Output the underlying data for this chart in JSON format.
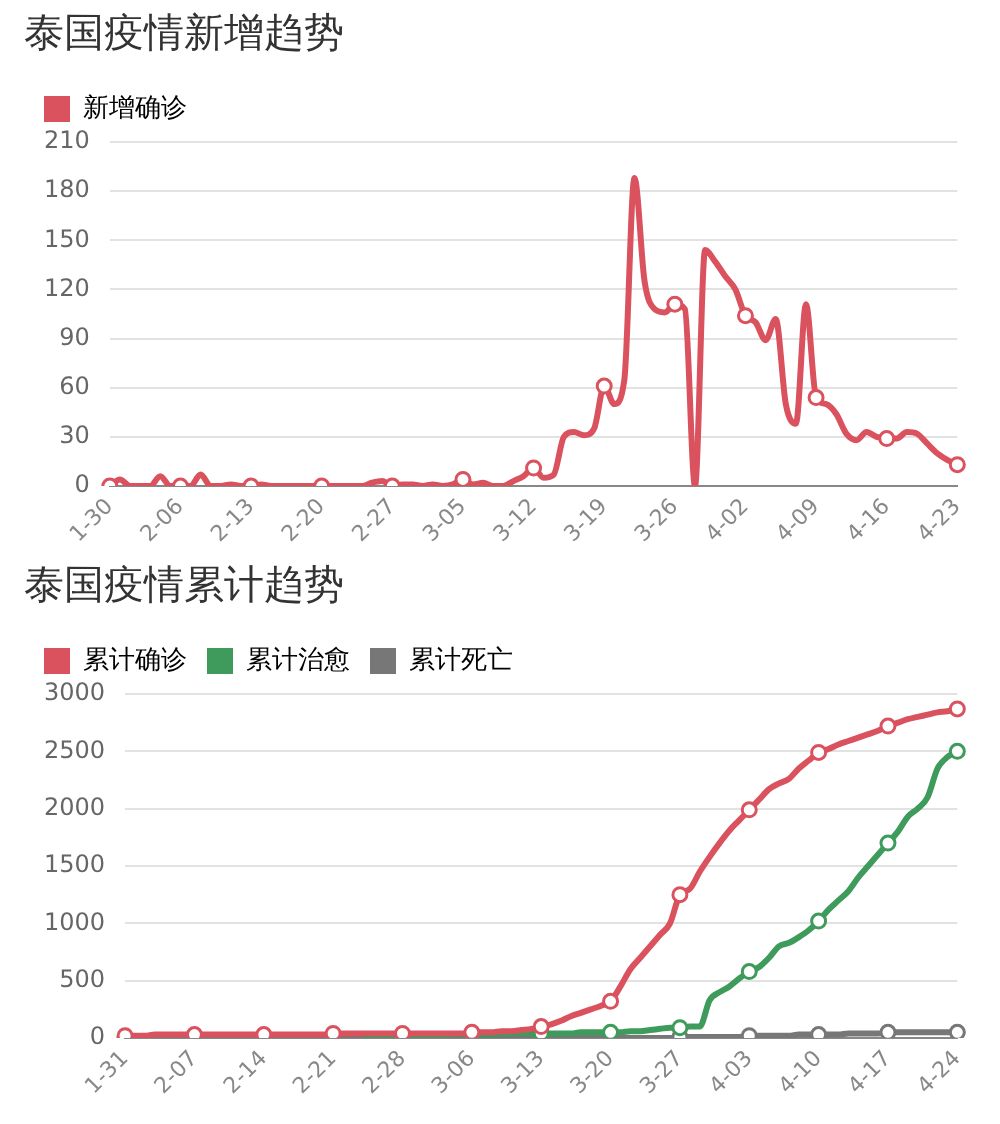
{
  "chart_data": [
    {
      "type": "line",
      "title": "泰国疫情新增趋势",
      "categories": [
        "1-30",
        null,
        null,
        null,
        null,
        null,
        null,
        "2-06",
        null,
        null,
        null,
        null,
        null,
        null,
        "2-13",
        null,
        null,
        null,
        null,
        null,
        null,
        "2-20",
        null,
        null,
        null,
        null,
        null,
        null,
        "2-27",
        null,
        null,
        null,
        null,
        null,
        null,
        "3-05",
        null,
        null,
        null,
        null,
        null,
        null,
        "3-12",
        null,
        null,
        null,
        null,
        null,
        null,
        "3-19",
        null,
        null,
        null,
        null,
        null,
        null,
        "3-26",
        null,
        null,
        null,
        null,
        null,
        null,
        "4-02",
        null,
        null,
        null,
        null,
        null,
        null,
        "4-09",
        null,
        null,
        null,
        null,
        null,
        null,
        "4-16",
        null,
        null,
        null,
        null,
        null,
        null,
        "4-23"
      ],
      "series": [
        {
          "name": "新增确诊",
          "color": "#d9525e",
          "values": [
            0,
            4,
            0,
            0,
            0,
            6,
            0,
            0,
            0,
            7,
            0,
            0,
            1,
            0,
            0,
            1,
            0,
            0,
            0,
            0,
            0,
            0,
            0,
            0,
            0,
            0,
            2,
            3,
            0,
            1,
            1,
            0,
            1,
            0,
            1,
            4,
            1,
            2,
            0,
            0,
            3,
            6,
            11,
            5,
            7,
            30,
            33,
            31,
            35,
            61,
            50,
            65,
            188,
            125,
            108,
            106,
            111,
            108,
            0,
            144,
            137,
            128,
            120,
            104,
            100,
            89,
            102,
            50,
            38,
            111,
            54,
            50,
            44,
            32,
            28,
            33,
            30,
            29,
            29,
            33,
            32,
            26,
            20,
            16,
            13
          ]
        }
      ],
      "ylim": [
        0,
        210
      ],
      "yticks": [
        0,
        30,
        60,
        90,
        120,
        150,
        180,
        210
      ],
      "grid": "y",
      "legend": "top left"
    },
    {
      "type": "line",
      "title": "泰国疫情累计趋势",
      "categories": [
        "1-31",
        null,
        null,
        null,
        null,
        null,
        null,
        "2-07",
        null,
        null,
        null,
        null,
        null,
        null,
        "2-14",
        null,
        null,
        null,
        null,
        null,
        null,
        "2-21",
        null,
        null,
        null,
        null,
        null,
        null,
        "2-28",
        null,
        null,
        null,
        null,
        null,
        null,
        "3-06",
        null,
        null,
        null,
        null,
        null,
        null,
        "3-13",
        null,
        null,
        null,
        null,
        null,
        null,
        "3-20",
        null,
        null,
        null,
        null,
        null,
        null,
        "3-27",
        null,
        null,
        null,
        null,
        null,
        null,
        "4-03",
        null,
        null,
        null,
        null,
        null,
        null,
        "4-10",
        null,
        null,
        null,
        null,
        null,
        null,
        "4-17",
        null,
        null,
        null,
        null,
        null,
        null,
        "4-24"
      ],
      "series": [
        {
          "name": "累计确诊",
          "color": "#d9525e",
          "values": [
            20,
            20,
            20,
            30,
            30,
            30,
            30,
            30,
            30,
            30,
            30,
            30,
            30,
            30,
            30,
            30,
            30,
            30,
            30,
            30,
            30,
            40,
            40,
            40,
            40,
            40,
            40,
            40,
            40,
            40,
            40,
            40,
            40,
            40,
            40,
            50,
            50,
            50,
            60,
            60,
            70,
            80,
            100,
            120,
            150,
            190,
            220,
            250,
            280,
            320,
            450,
            600,
            700,
            800,
            900,
            1000,
            1250,
            1300,
            1450,
            1580,
            1700,
            1810,
            1900,
            1990,
            2080,
            2170,
            2220,
            2260,
            2350,
            2420,
            2490,
            2520,
            2560,
            2590,
            2620,
            2650,
            2680,
            2720,
            2750,
            2780,
            2800,
            2820,
            2840,
            2850,
            2870
          ]
        },
        {
          "name": "累计治愈",
          "color": "#3f9b5c",
          "values": [
            null,
            null,
            null,
            null,
            null,
            null,
            null,
            null,
            null,
            null,
            null,
            null,
            null,
            null,
            null,
            null,
            null,
            null,
            null,
            null,
            null,
            null,
            null,
            null,
            10,
            10,
            10,
            10,
            20,
            20,
            20,
            20,
            20,
            30,
            30,
            30,
            30,
            30,
            40,
            40,
            40,
            40,
            40,
            40,
            40,
            40,
            50,
            50,
            50,
            50,
            50,
            60,
            60,
            70,
            80,
            90,
            90,
            100,
            100,
            330,
            400,
            450,
            520,
            580,
            620,
            700,
            800,
            830,
            880,
            940,
            1020,
            1120,
            1200,
            1280,
            1400,
            1500,
            1600,
            1700,
            1800,
            1930,
            2000,
            2100,
            2350,
            2450,
            2500
          ]
        },
        {
          "name": "累计死亡",
          "color": "#777777",
          "values": [
            0,
            0,
            0,
            0,
            0,
            0,
            0,
            0,
            0,
            0,
            0,
            0,
            0,
            0,
            0,
            0,
            0,
            0,
            0,
            0,
            0,
            0,
            0,
            0,
            0,
            0,
            0,
            0,
            0,
            0,
            0,
            0,
            0,
            0,
            0,
            0,
            0,
            0,
            0,
            0,
            0,
            0,
            0,
            0,
            0,
            0,
            0,
            0,
            0,
            0,
            0,
            0,
            0,
            0,
            0,
            0,
            10,
            10,
            10,
            10,
            10,
            10,
            10,
            20,
            20,
            20,
            20,
            20,
            30,
            30,
            30,
            30,
            30,
            40,
            40,
            40,
            40,
            50,
            50,
            50,
            50,
            50,
            50,
            50,
            50
          ]
        }
      ],
      "ylim": [
        0,
        3000
      ],
      "yticks": [
        0,
        500,
        1000,
        1500,
        2000,
        2500,
        3000
      ],
      "grid": "y",
      "legend": "top left"
    }
  ]
}
